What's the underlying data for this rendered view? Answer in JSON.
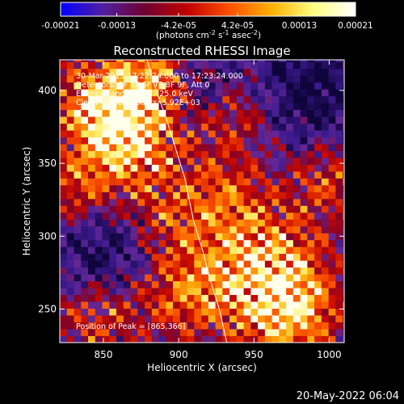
{
  "colorbar": {
    "ticks": [
      "-0.00021",
      "-0.00013",
      "-4.2e-05",
      "4.2e-05",
      "0.00013",
      "0.00021"
    ],
    "tick_values": [
      -0.00021,
      -0.00013,
      -4.2e-05,
      4.2e-05,
      0.00013,
      0.00021
    ],
    "range": [
      -0.00021,
      0.00021
    ],
    "units_main": "(photons cm",
    "units_exp1": "-2",
    "units_mid": " s",
    "units_exp2": "-1",
    "units_end": " asec",
    "units_exp3": "-2",
    "units_close": ")",
    "stops": [
      "#0000ff",
      "#5020a0",
      "#700030",
      "#c00000",
      "#ff5000",
      "#ffb000",
      "#ffff80",
      "#ffffff"
    ]
  },
  "annotations": {
    "line1": "30-Mar-2015 17:22:24.000 to 17:23:24.000",
    "line2": "Detectors: 3F 5F 6F 7F 8F 9F, Att 0",
    "line3": "Energy Range: 12.0 - 25.0 keV",
    "line4": "Clean     Total Counts: 5.92E+03",
    "peak": "Position of Peak = [865,366]"
  },
  "footer": {
    "date": "20-May-2022 06:04"
  },
  "chart_data": {
    "type": "heatmap",
    "title": "Reconstructed RHESSI Image",
    "xlabel": "Heliocentric X (arcsec)",
    "ylabel": "Heliocentric Y (arcsec)",
    "xlim": [
      821,
      1010
    ],
    "ylim": [
      227,
      421
    ],
    "xticks": [
      850,
      900,
      950,
      1000
    ],
    "yticks": [
      250,
      300,
      350,
      400
    ],
    "xtick_labels": [
      "850",
      "900",
      "950",
      "1000"
    ],
    "ytick_labels": [
      "250",
      "300",
      "350",
      "400"
    ],
    "limb_curve": {
      "x": [
        879,
        885,
        892,
        898,
        904,
        910,
        916,
        921,
        927,
        932
      ],
      "y": [
        421,
        400,
        380,
        360,
        340,
        310,
        290,
        270,
        250,
        227
      ]
    },
    "bright_sources": [
      {
        "x": 865,
        "y": 366,
        "level": 1.0,
        "radius": 25
      },
      {
        "x": 848,
        "y": 395,
        "level": 0.75,
        "radius": 20
      },
      {
        "x": 885,
        "y": 410,
        "level": 0.7,
        "radius": 18
      },
      {
        "x": 955,
        "y": 278,
        "level": 0.95,
        "radius": 30
      },
      {
        "x": 975,
        "y": 245,
        "level": 0.7,
        "radius": 22
      },
      {
        "x": 930,
        "y": 330,
        "level": 0.45,
        "radius": 20
      },
      {
        "x": 900,
        "y": 260,
        "level": 0.55,
        "radius": 22
      },
      {
        "x": 845,
        "y": 245,
        "level": 0.5,
        "radius": 20
      },
      {
        "x": 935,
        "y": 385,
        "level": 0.55,
        "radius": 20
      },
      {
        "x": 1000,
        "y": 340,
        "level": 0.5,
        "radius": 18
      },
      {
        "x": 890,
        "y": 310,
        "level": 0.45,
        "radius": 20
      },
      {
        "x": 830,
        "y": 330,
        "level": 0.45,
        "radius": 18
      }
    ],
    "dark_regions": [
      {
        "x": 985,
        "y": 400,
        "radius": 28
      },
      {
        "x": 855,
        "y": 290,
        "radius": 25
      },
      {
        "x": 915,
        "y": 400,
        "radius": 18
      }
    ]
  }
}
